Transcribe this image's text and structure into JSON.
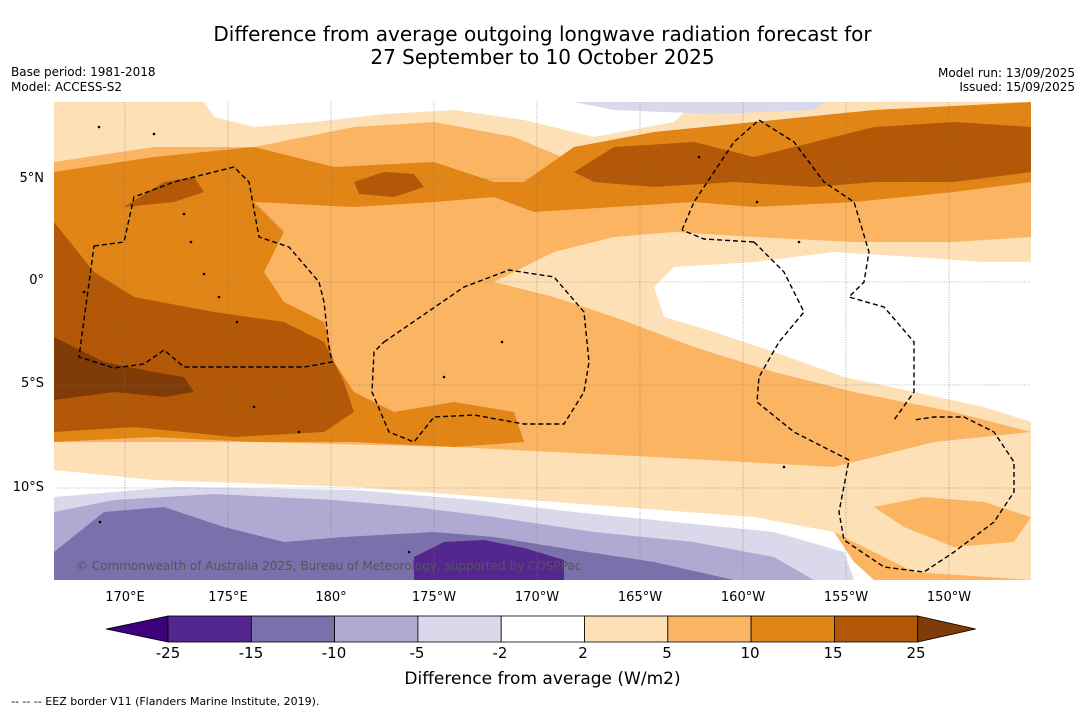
{
  "title": {
    "line1": "Difference from average outgoing longwave radiation forecast for",
    "line2": "27 September to 10 October 2025"
  },
  "meta": {
    "base_period": "Base period: 1981-2018",
    "model": "Model: ACCESS-S2",
    "model_run": "Model run: 13/09/2025",
    "issued": "Issued: 15/09/2025"
  },
  "axes": {
    "lat_labels": [
      "5°N",
      "0°",
      "5°S",
      "10°S"
    ],
    "lon_labels": [
      "170°E",
      "175°E",
      "180°",
      "175°W",
      "170°W",
      "165°W",
      "160°W",
      "155°W",
      "150°W"
    ]
  },
  "colorbar": {
    "ticks": [
      "-25",
      "-15",
      "-10",
      "-5",
      "-2",
      "2",
      "5",
      "10",
      "15",
      "25"
    ],
    "colors": [
      "#3f007d",
      "#54278f",
      "#7b6fac",
      "#b0aad2",
      "#d9d9eb",
      "#ffffff",
      "#fde0b5",
      "#fbb462",
      "#e08516",
      "#b35806",
      "#7f3b08"
    ],
    "title": "Difference from average (W/m2)"
  },
  "copyright": "© Commonwealth of Australia 2025, Bureau of Meteorology, supported by COSPPac",
  "footnote": "--  --  -- EEZ border V11 (Flanders Marine Institute, 2019)."
}
